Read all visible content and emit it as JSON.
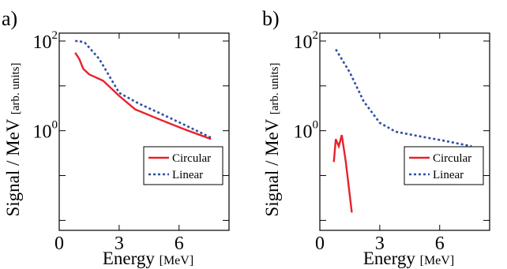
{
  "chart_data": [
    {
      "panel_label": "a)",
      "type": "line",
      "xlabel": "Energy",
      "xlabel_unit": "[MeV]",
      "ylabel": "Signal / MeV",
      "ylabel_unit": "[arb. units]",
      "xlim": [
        0,
        8.5
      ],
      "ylim": [
        0.006,
        150
      ],
      "yscale": "log",
      "x_ticks": [
        0,
        3,
        6
      ],
      "x_tick_labels": [
        "0",
        "3",
        "6"
      ],
      "y_ticks": [
        0.01,
        0.1,
        1,
        10,
        100
      ],
      "y_tick_labels": [
        {
          "value": 100,
          "base": "10",
          "exp": "2"
        },
        {
          "value": 1,
          "base": "10",
          "exp": "0"
        }
      ],
      "legend": {
        "placement": "bottom-right"
      },
      "series": [
        {
          "name": "Circular",
          "color": "#e8212a",
          "style": "solid",
          "points": [
            [
              0.8,
              55
            ],
            [
              1.0,
              40
            ],
            [
              1.2,
              24
            ],
            [
              1.5,
              18
            ],
            [
              2.2,
              13
            ],
            [
              3.0,
              6
            ],
            [
              3.8,
              3.0
            ],
            [
              5.0,
              1.8
            ],
            [
              6.2,
              1.1
            ],
            [
              7.6,
              0.65
            ]
          ]
        },
        {
          "name": "Linear",
          "color": "#2e4fa3",
          "style": "dashed",
          "points": [
            [
              0.8,
              100
            ],
            [
              1.0,
              100
            ],
            [
              1.3,
              90
            ],
            [
              2.0,
              40
            ],
            [
              3.0,
              7
            ],
            [
              4.0,
              4.0
            ],
            [
              5.0,
              2.5
            ],
            [
              6.2,
              1.4
            ],
            [
              7.6,
              0.7
            ]
          ]
        }
      ]
    },
    {
      "panel_label": "b)",
      "type": "line",
      "xlabel": "Energy",
      "xlabel_unit": "[MeV]",
      "ylabel": "Signal / MeV",
      "ylabel_unit": "[arb. units]",
      "xlim": [
        0,
        8.5
      ],
      "ylim": [
        0.006,
        150
      ],
      "yscale": "log",
      "x_ticks": [
        0,
        3,
        6
      ],
      "x_tick_labels": [
        "0",
        "3",
        "6"
      ],
      "y_ticks": [
        0.01,
        0.1,
        1,
        10,
        100
      ],
      "y_tick_labels": [
        {
          "value": 100,
          "base": "10",
          "exp": "2"
        },
        {
          "value": 1,
          "base": "10",
          "exp": "0"
        }
      ],
      "legend": {
        "placement": "bottom-right"
      },
      "series": [
        {
          "name": "Circular",
          "color": "#e8212a",
          "style": "solid",
          "points": [
            [
              0.7,
              0.2
            ],
            [
              0.8,
              0.65
            ],
            [
              0.95,
              0.45
            ],
            [
              1.1,
              0.8
            ],
            [
              1.3,
              0.2
            ],
            [
              1.6,
              0.015
            ]
          ]
        },
        {
          "name": "Linear",
          "color": "#2e4fa3",
          "style": "dashed",
          "points": [
            [
              0.8,
              65
            ],
            [
              1.5,
              20
            ],
            [
              2.2,
              4.5
            ],
            [
              3.0,
              1.5
            ],
            [
              3.8,
              0.95
            ],
            [
              5.0,
              0.75
            ],
            [
              6.2,
              0.6
            ],
            [
              7.6,
              0.45
            ]
          ]
        }
      ]
    }
  ]
}
